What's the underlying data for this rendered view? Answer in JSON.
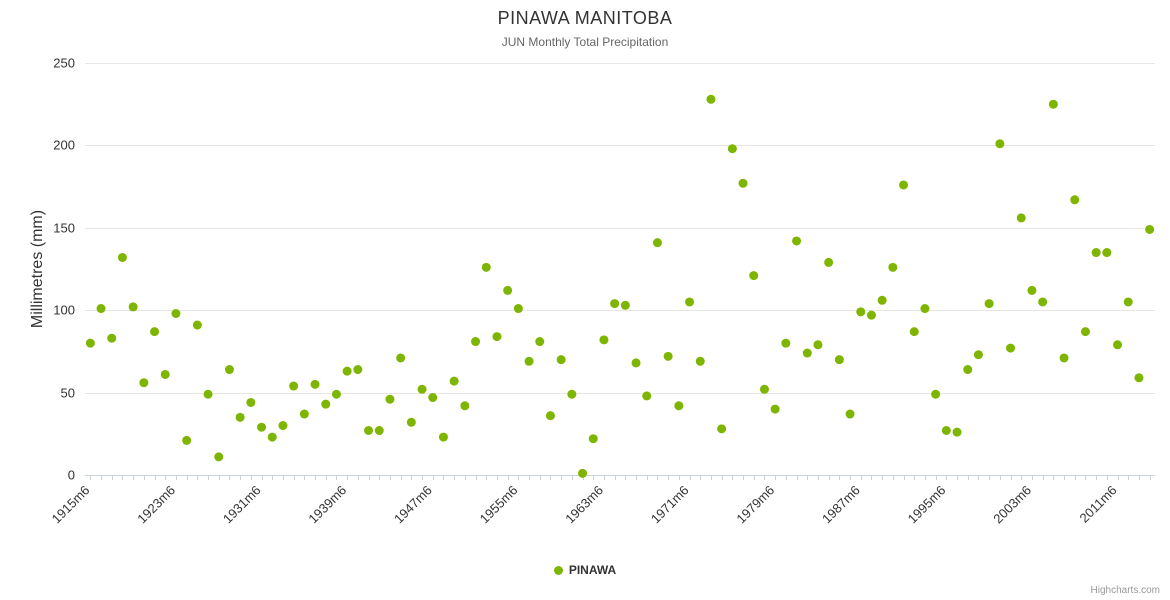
{
  "chart": {
    "title": "PINAWA MANITOBA",
    "subtitle": "JUN Monthly Total Precipitation",
    "y_axis_title": "Millimetres (mm)",
    "legend_label": "PINAWA",
    "credits": "Highcharts.com"
  },
  "chart_data": {
    "type": "scatter",
    "title": "PINAWA MANITOBA",
    "subtitle": "JUN Monthly Total Precipitation",
    "xlabel": "",
    "ylabel": "Millimetres (mm)",
    "ylim": [
      0,
      250
    ],
    "yticks": [
      0,
      50,
      100,
      150,
      200,
      250
    ],
    "grid": "horizontal",
    "legend_position": "bottom",
    "marker_color": "#7db500",
    "grid_color": "#e6e6e6",
    "axis_line_color": "#ccd2d9",
    "tick_label_color": "#333333",
    "x_start_year": 1915,
    "x_label_suffix": "m6",
    "xtick_positions": [
      0,
      8,
      16,
      24,
      32,
      40,
      48,
      56,
      64,
      72,
      80,
      88,
      96
    ],
    "xtick_labels": [
      "1915m6",
      "1923m6",
      "1931m6",
      "1939m6",
      "1947m6",
      "1955m6",
      "1963m6",
      "1971m6",
      "1979m6",
      "1987m6",
      "1995m6",
      "2003m6",
      "2011m6"
    ],
    "series": [
      {
        "name": "PINAWA",
        "color": "#7db500",
        "values": [
          80,
          101,
          83,
          132,
          102,
          56,
          87,
          61,
          98,
          21,
          91,
          49,
          11,
          64,
          35,
          44,
          29,
          23,
          30,
          54,
          37,
          55,
          43,
          49,
          63,
          64,
          27,
          27,
          46,
          71,
          32,
          52,
          47,
          23,
          57,
          42,
          81,
          126,
          84,
          112,
          101,
          69,
          81,
          36,
          70,
          49,
          1,
          22,
          82,
          104,
          103,
          68,
          48,
          141,
          72,
          42,
          105,
          69,
          228,
          28,
          198,
          177,
          121,
          52,
          40,
          80,
          142,
          74,
          79,
          129,
          70,
          37,
          99,
          97,
          106,
          126,
          176,
          87,
          101,
          49,
          27,
          26,
          64,
          73,
          104,
          201,
          77,
          156,
          112,
          105,
          225,
          71,
          167,
          87,
          135,
          135,
          79,
          105,
          59,
          149
        ]
      }
    ]
  }
}
